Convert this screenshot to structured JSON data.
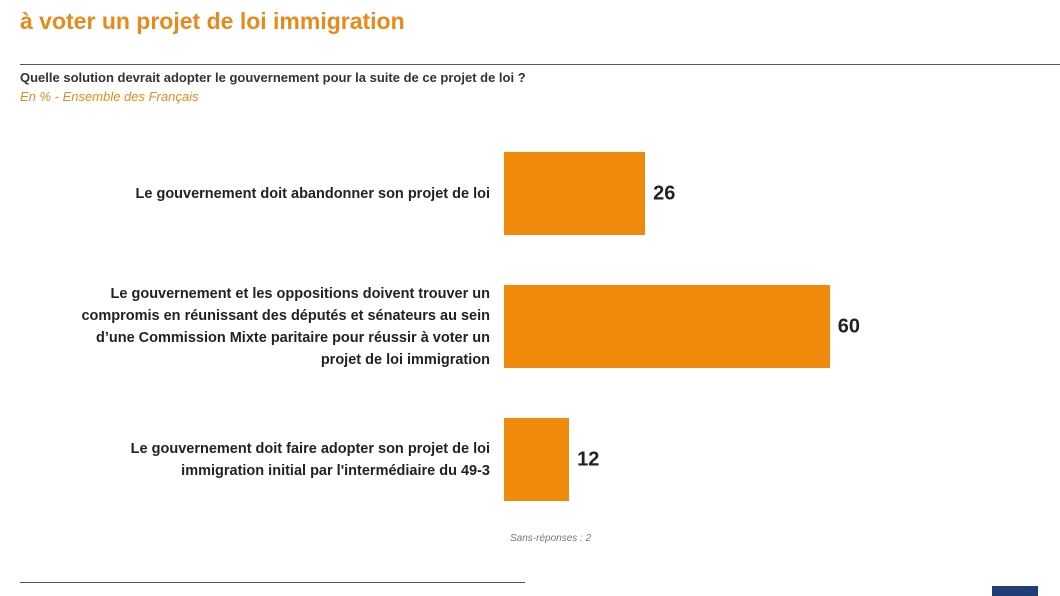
{
  "chart_data": {
    "type": "bar",
    "orientation": "horizontal",
    "title": "à voter un projet de loi immigration",
    "subtitle": "Quelle solution devrait adopter le gouvernement pour la suite de ce projet de loi ?",
    "base": "En % - Ensemble des Français",
    "categories": [
      "Le gouvernement doit abandonner son projet de loi",
      "Le gouvernement et les oppositions doivent trouver un\ncompromis en réunissant des députés et sénateurs au sein\nd’une Commission Mixte paritaire pour réussir à voter un\nprojet de loi immigration",
      "Le gouvernement doit faire adopter son projet de loi\nimmigration initial par l'intermédiaire du 49-3"
    ],
    "values": [
      26,
      60,
      12
    ],
    "color": "#f08a0c",
    "note": "Sans-réponses : 2"
  }
}
